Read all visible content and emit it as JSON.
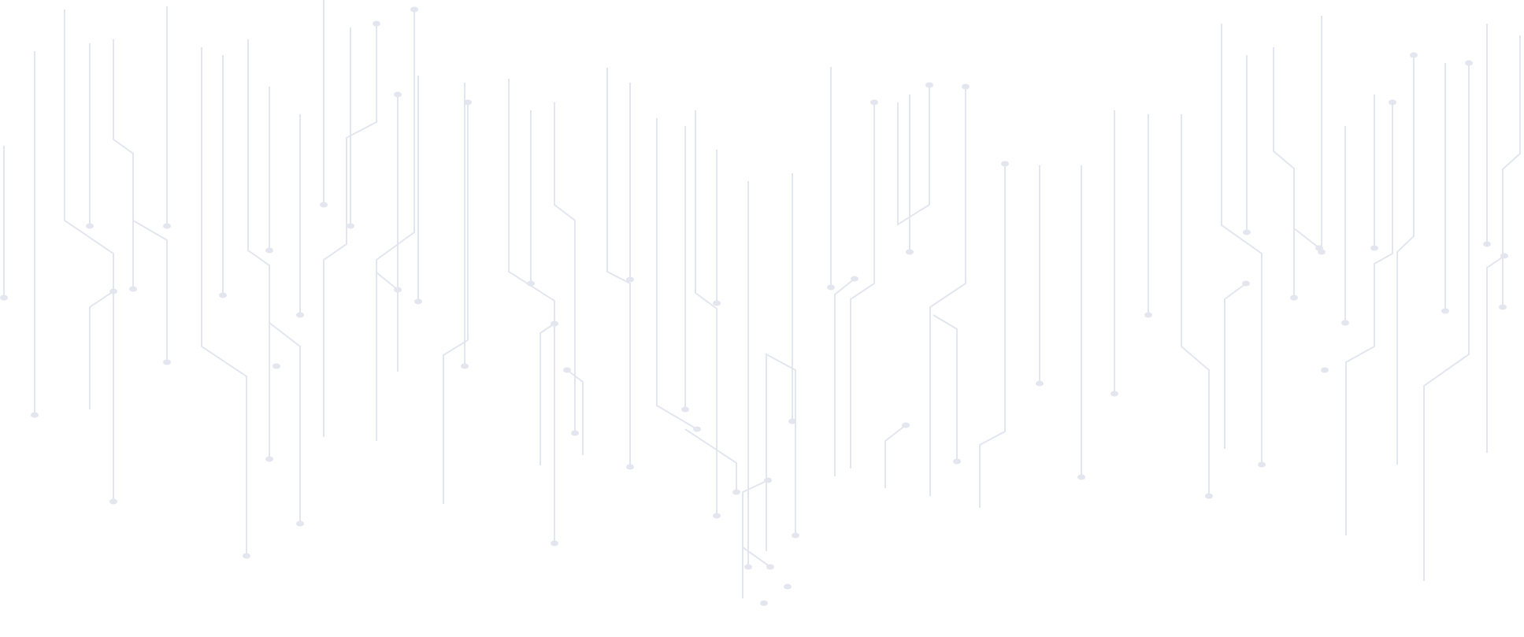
{
  "background": {
    "pattern": "circuit-traces",
    "background_color": "#ffffff",
    "trace_color": "#f2f3f8"
  }
}
